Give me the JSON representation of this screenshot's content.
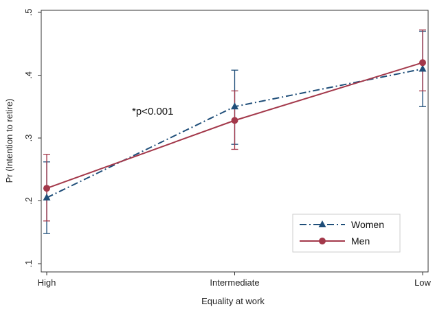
{
  "chart_data": {
    "type": "line",
    "title": "",
    "xlabel": "Equality at work",
    "ylabel": "Pr (Intention to retire)",
    "categories": [
      "High",
      "Intermediate",
      "Low"
    ],
    "ylim": [
      0.1,
      0.5
    ],
    "yticks": [
      0.1,
      0.2,
      0.3,
      0.4,
      0.5
    ],
    "ytick_labels": [
      ".1",
      ".2",
      ".3",
      ".4",
      ".5"
    ],
    "grid": false,
    "legend_position": "bottom-right",
    "annotation": "*p<0.001",
    "series": [
      {
        "name": "Women",
        "color": "#1f4e79",
        "line_style": "dash-dot",
        "marker": "triangle",
        "values": [
          0.205,
          0.35,
          0.41
        ],
        "ci_low": [
          0.148,
          0.29,
          0.35
        ],
        "ci_high": [
          0.262,
          0.408,
          0.47
        ]
      },
      {
        "name": "Men",
        "color": "#a3384a",
        "line_style": "solid",
        "marker": "circle",
        "values": [
          0.22,
          0.328,
          0.42
        ],
        "ci_low": [
          0.168,
          0.282,
          0.375
        ],
        "ci_high": [
          0.274,
          0.375,
          0.472
        ]
      }
    ]
  }
}
